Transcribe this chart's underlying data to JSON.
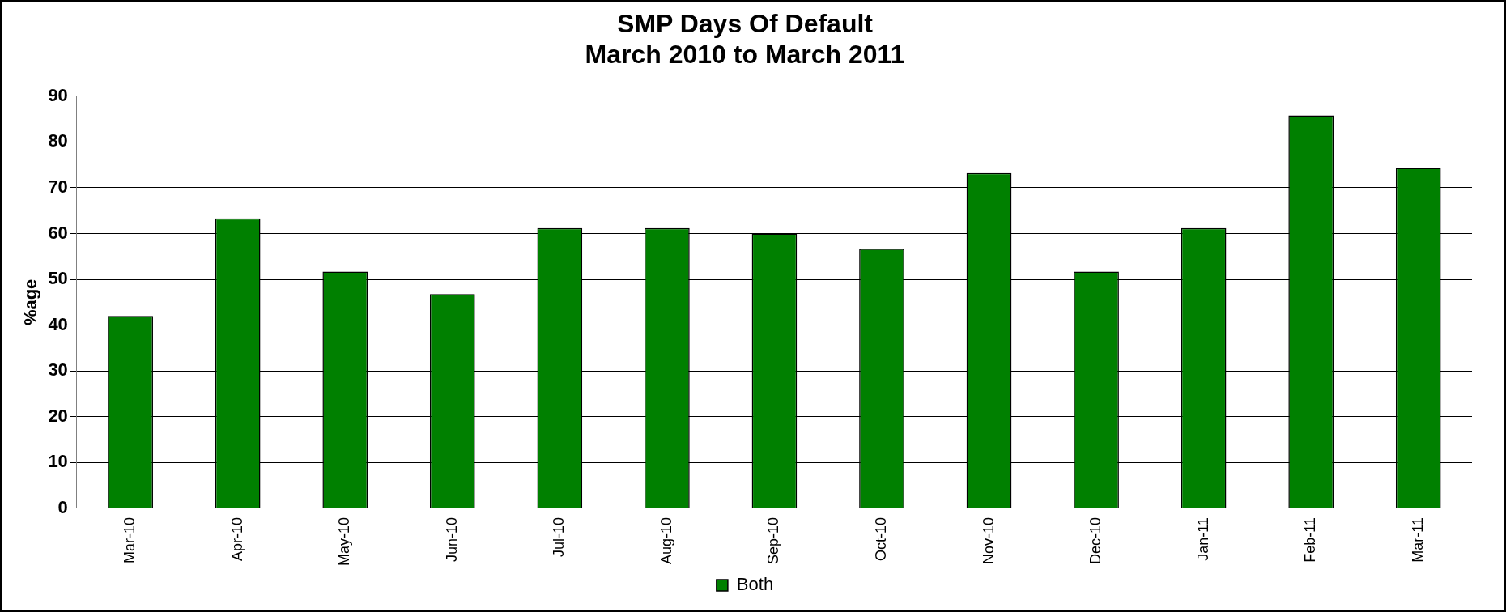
{
  "chart_data": {
    "type": "bar",
    "title": [
      "SMP Days Of Default",
      "March 2010 to March 2011"
    ],
    "ylabel": "%age",
    "categories": [
      "Mar-10",
      "Apr-10",
      "May-10",
      "Jun-10",
      "Jul-10",
      "Aug-10",
      "Sep-10",
      "Oct-10",
      "Nov-10",
      "Dec-10",
      "Jan-11",
      "Feb-11",
      "Mar-11"
    ],
    "series": [
      {
        "name": "Both",
        "color": "#008000",
        "values": [
          42,
          63.3,
          51.7,
          46.8,
          61.2,
          61.2,
          60,
          56.7,
          73.2,
          51.7,
          61.2,
          85.8,
          74.3
        ]
      }
    ],
    "ylim": [
      0,
      90
    ],
    "yticks": [
      0,
      10,
      20,
      30,
      40,
      50,
      60,
      70,
      80,
      90
    ],
    "grid": "y",
    "legend": "bottom"
  }
}
